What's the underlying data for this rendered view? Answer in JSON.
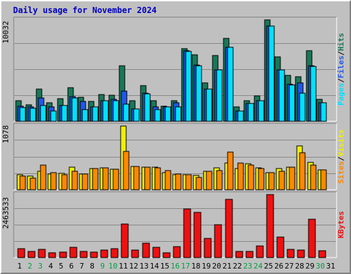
{
  "title": "Daily usage for November 2024",
  "colors": {
    "hits": "#187858",
    "files": "#2058e8",
    "pages": "#00e0ff",
    "visits": "#f0f000",
    "sites": "#ff8800",
    "kbytes": "#ee1111",
    "day_black": "#000000",
    "day_weekend": "#00a040"
  },
  "chart_data": [
    {
      "type": "bar",
      "title": "",
      "ylabel_parts": [
        "Pages",
        "/",
        "Files",
        "/",
        "Hits"
      ],
      "ymax_label": "10032",
      "ylim": [
        0,
        10032
      ],
      "categories": [
        "1",
        "2",
        "3",
        "4",
        "5",
        "6",
        "7",
        "8",
        "9",
        "10",
        "11",
        "12",
        "13",
        "14",
        "15",
        "16",
        "17",
        "18",
        "19",
        "20",
        "21",
        "22",
        "23",
        "24",
        "25",
        "26",
        "27",
        "28",
        "29",
        "30",
        "31"
      ],
      "series": [
        {
          "name": "Hits",
          "values": [
            2050,
            1650,
            3180,
            1820,
            2250,
            3320,
            2380,
            1950,
            2650,
            2580,
            5500,
            2000,
            3550,
            2000,
            1500,
            2050,
            7200,
            6550,
            3780,
            6500,
            8200,
            1430,
            2050,
            2500,
            10032,
            6400,
            4550,
            4400,
            6950,
            2150,
            0
          ]
        },
        {
          "name": "Files",
          "values": [
            1500,
            1400,
            2300,
            1400,
            1550,
            2450,
            1950,
            1450,
            2050,
            2150,
            2950,
            1250,
            2750,
            1400,
            1450,
            1800,
            6950,
            5550,
            3200,
            5050,
            7350,
            1050,
            1750,
            2050,
            9450,
            5100,
            3650,
            3800,
            5500,
            1800,
            0
          ]
        },
        {
          "name": "Pages",
          "values": [
            1350,
            1300,
            1550,
            1050,
            1550,
            2300,
            1150,
            1400,
            2050,
            2050,
            1700,
            1250,
            2700,
            1150,
            1400,
            1450,
            6900,
            5500,
            3200,
            5050,
            7350,
            1050,
            1750,
            2050,
            9450,
            5100,
            3600,
            2800,
            5400,
            1800,
            0
          ]
        }
      ]
    },
    {
      "type": "bar",
      "title": "",
      "ylabel_parts": [
        "Sites",
        "/",
        "Visits"
      ],
      "ymax_label": "1078",
      "ylim": [
        0,
        1078
      ],
      "categories": [
        "1",
        "2",
        "3",
        "4",
        "5",
        "6",
        "7",
        "8",
        "9",
        "10",
        "11",
        "12",
        "13",
        "14",
        "15",
        "16",
        "17",
        "18",
        "19",
        "20",
        "21",
        "22",
        "23",
        "24",
        "25",
        "26",
        "27",
        "28",
        "29",
        "30",
        "31"
      ],
      "series": [
        {
          "name": "Visits",
          "values": [
            260,
            230,
            310,
            270,
            280,
            380,
            270,
            360,
            370,
            350,
            1078,
            390,
            380,
            380,
            290,
            260,
            260,
            240,
            310,
            370,
            450,
            360,
            440,
            370,
            290,
            360,
            380,
            740,
            460,
            340,
            0
          ]
        },
        {
          "name": "Sites",
          "values": [
            230,
            200,
            420,
            290,
            250,
            310,
            270,
            360,
            370,
            350,
            650,
            390,
            380,
            370,
            330,
            270,
            250,
            210,
            310,
            330,
            640,
            450,
            420,
            360,
            290,
            310,
            380,
            630,
            420,
            340,
            0
          ]
        }
      ]
    },
    {
      "type": "bar",
      "title": "",
      "ylabel_parts": [
        "KBytes"
      ],
      "ymax_label": "2463533",
      "ylim": [
        0,
        2463533
      ],
      "categories": [
        "1",
        "2",
        "3",
        "4",
        "5",
        "6",
        "7",
        "8",
        "9",
        "10",
        "11",
        "12",
        "13",
        "14",
        "15",
        "16",
        "17",
        "18",
        "19",
        "20",
        "21",
        "22",
        "23",
        "24",
        "25",
        "26",
        "27",
        "28",
        "29",
        "30",
        "31"
      ],
      "series": [
        {
          "name": "KBytes",
          "values": [
            350000,
            240000,
            320000,
            200000,
            210000,
            390000,
            230000,
            220000,
            300000,
            350000,
            1320000,
            290000,
            560000,
            400000,
            200000,
            430000,
            1890000,
            1780000,
            740000,
            1290000,
            2270000,
            250000,
            230000,
            460000,
            2463533,
            810000,
            310000,
            300000,
            1490000,
            280000,
            0
          ]
        }
      ]
    }
  ]
}
